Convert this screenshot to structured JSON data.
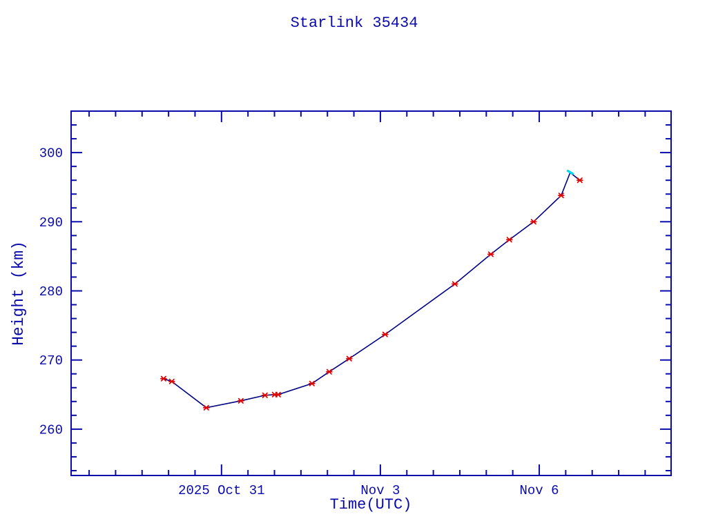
{
  "title": "Starlink 35434",
  "colors": {
    "axis": "#0a0aaa",
    "text": "#0a0aaa",
    "line": "#000082",
    "marker": "#dd0000",
    "peak": "#00d8ee",
    "background": "#ffffff"
  },
  "chart_data": {
    "type": "line",
    "title": "Starlink 35434",
    "xlabel": "Time(UTC)",
    "ylabel": "Height (km)",
    "legend": "none",
    "grid": false,
    "x_axis": {
      "origin_label": "2025 Oct 31",
      "units": "days relative to 2025 Oct 31 00:00 UTC",
      "min_days": -2.84,
      "max_days": 8.49,
      "minor_step_days": 0.5,
      "major_ticks": [
        {
          "days": 0,
          "label": "2025 Oct 31"
        },
        {
          "days": 3,
          "label": "Nov  3"
        },
        {
          "days": 6,
          "label": "Nov  6"
        }
      ]
    },
    "y_axis": {
      "min": 253.3,
      "max": 306.0,
      "minor_step": 2,
      "major_ticks": [
        260,
        270,
        280,
        290,
        300
      ]
    },
    "series": [
      {
        "name": "observed height",
        "marker": "red-asterisk",
        "marker_points": [
          {
            "t_days": -1.095,
            "height_km": 267.3
          },
          {
            "t_days": -0.939,
            "height_km": 266.9
          },
          {
            "t_days": -0.287,
            "height_km": 263.1
          },
          {
            "t_days": 0.365,
            "height_km": 264.1
          },
          {
            "t_days": 0.821,
            "height_km": 264.9
          },
          {
            "t_days": 1.004,
            "height_km": 265.0
          },
          {
            "t_days": 1.069,
            "height_km": 265.0
          },
          {
            "t_days": 1.708,
            "height_km": 266.6
          },
          {
            "t_days": 2.034,
            "height_km": 268.3
          },
          {
            "t_days": 2.412,
            "height_km": 270.2
          },
          {
            "t_days": 3.09,
            "height_km": 273.7
          },
          {
            "t_days": 4.407,
            "height_km": 281.0
          },
          {
            "t_days": 5.085,
            "height_km": 285.3
          },
          {
            "t_days": 5.436,
            "height_km": 287.4
          },
          {
            "t_days": 5.893,
            "height_km": 290.0
          },
          {
            "t_days": 6.414,
            "height_km": 293.8
          },
          {
            "t_days": 6.766,
            "height_km": 296.0
          }
        ],
        "line_vertices": [
          {
            "t_days": -1.095,
            "height_km": 267.3
          },
          {
            "t_days": -0.939,
            "height_km": 266.9
          },
          {
            "t_days": -0.287,
            "height_km": 263.1
          },
          {
            "t_days": 0.365,
            "height_km": 264.1
          },
          {
            "t_days": 0.821,
            "height_km": 264.9
          },
          {
            "t_days": 1.004,
            "height_km": 265.0
          },
          {
            "t_days": 1.069,
            "height_km": 265.0
          },
          {
            "t_days": 1.708,
            "height_km": 266.6
          },
          {
            "t_days": 2.034,
            "height_km": 268.3
          },
          {
            "t_days": 2.412,
            "height_km": 270.2
          },
          {
            "t_days": 3.09,
            "height_km": 273.7
          },
          {
            "t_days": 4.407,
            "height_km": 281.0
          },
          {
            "t_days": 5.085,
            "height_km": 285.3
          },
          {
            "t_days": 5.436,
            "height_km": 287.4
          },
          {
            "t_days": 5.893,
            "height_km": 290.0
          },
          {
            "t_days": 6.414,
            "height_km": 293.8
          },
          {
            "t_days": 6.584,
            "height_km": 297.1
          },
          {
            "t_days": 6.766,
            "height_km": 296.0
          }
        ]
      },
      {
        "name": "apex segment",
        "marker": "cyan-segment",
        "points": [
          {
            "t_days": 6.539,
            "height_km": 297.36
          },
          {
            "t_days": 6.63,
            "height_km": 296.96
          }
        ]
      }
    ],
    "apex": {
      "t_days": 6.584,
      "height_km": 297.1
    }
  }
}
